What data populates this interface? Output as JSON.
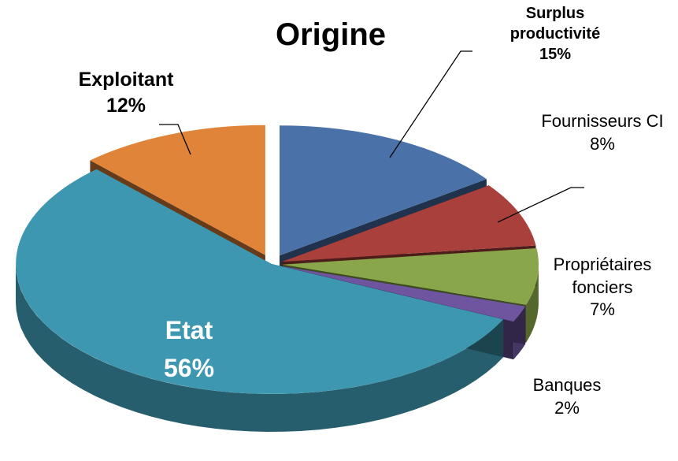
{
  "chart_data": {
    "type": "pie3d",
    "title": "Origine",
    "categories": [
      "Surplus productivité",
      "Fournisseurs CI",
      "Propriétaires fonciers",
      "Banques",
      "Etat",
      "Exploitant"
    ],
    "values": [
      15,
      8,
      7,
      2,
      56,
      12
    ],
    "value_labels": [
      "15%",
      "8%",
      "7%",
      "2%",
      "56%",
      "12%"
    ],
    "colors": [
      "#4a72a8",
      "#a9403c",
      "#8aa64a",
      "#6f55a0",
      "#3e97b0",
      "#e0843a"
    ]
  }
}
